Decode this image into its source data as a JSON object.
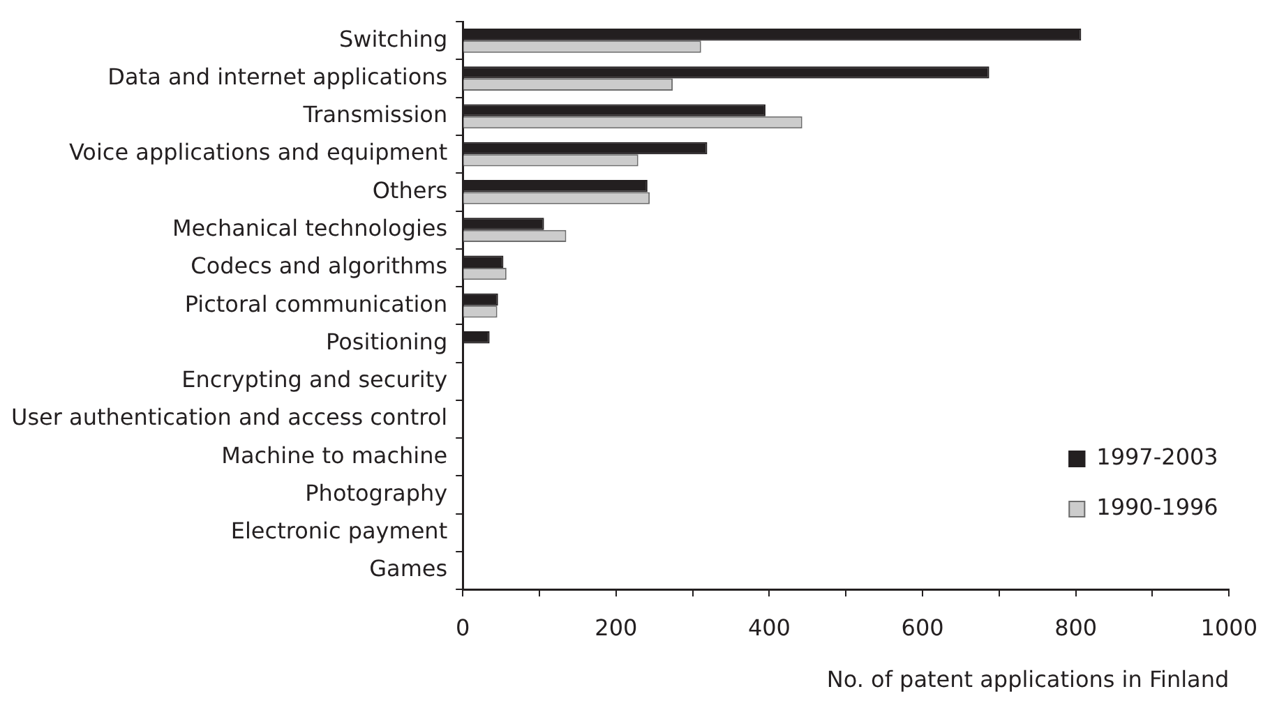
{
  "chart_data": {
    "type": "bar",
    "orientation": "horizontal",
    "xlabel": "No. of patent applications in Finland",
    "categories": [
      "Switching",
      "Data and internet applications",
      "Transmission",
      "Voice applications and equipment",
      "Others",
      "Mechanical technologies",
      "Codecs and algorithms",
      "Pictoral communication",
      "Positioning",
      "Encrypting and security",
      "User authentication and access control",
      "Machine to machine",
      "Photography",
      "Electronic payment",
      "Games"
    ],
    "series": [
      {
        "name": "1997-2003",
        "color": "#231f20",
        "values": [
          807,
          687,
          395,
          319,
          241,
          106,
          53,
          46,
          35,
          0,
          0,
          0,
          0,
          0,
          0
        ]
      },
      {
        "name": "1990-1996",
        "color": "#cccccc",
        "values": [
          311,
          274,
          443,
          229,
          244,
          135,
          57,
          45,
          0,
          0,
          0,
          0,
          0,
          0,
          0
        ]
      }
    ],
    "xlim": [
      0,
      1000
    ],
    "xticks": [
      0,
      {
        "value": 100,
        "label": null
      },
      200,
      {
        "value": 300,
        "label": null
      },
      400,
      {
        "value": 500,
        "label": null
      },
      600,
      {
        "value": 700,
        "label": null
      },
      800,
      {
        "value": 900,
        "label": null
      },
      1000
    ],
    "grid": false,
    "legend": "right"
  }
}
